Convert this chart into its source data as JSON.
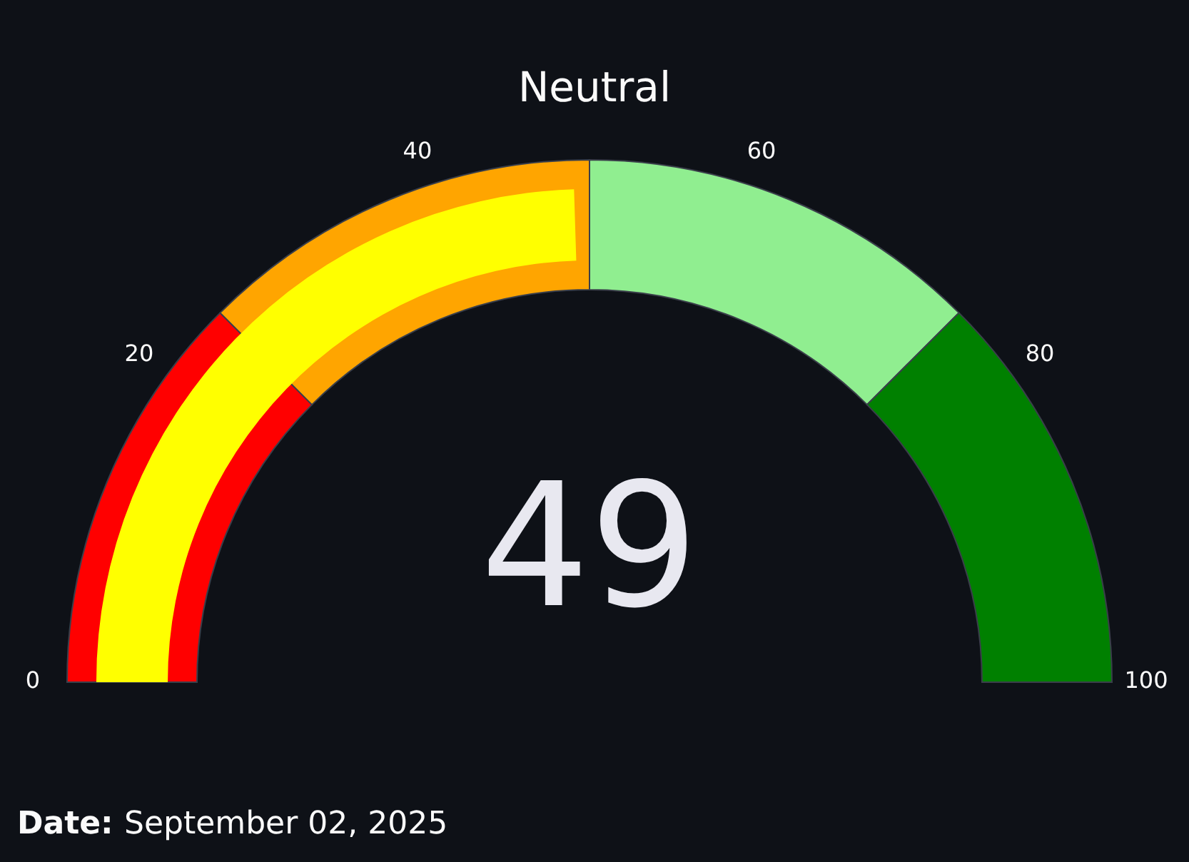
{
  "chart_data": {
    "type": "other",
    "title": "Neutral",
    "colors": [
      "#ff0000",
      "#ffa500",
      "#90ee90",
      "#008000"
    ],
    "series": [
      {
        "color": "#ffff00",
        "values": [
          49
        ]
      }
    ],
    "data_labels": true,
    "annotations": [
      "0",
      "20",
      "40",
      "60",
      "80",
      "100",
      "Date:",
      "September 02, 2025"
    ]
  }
}
